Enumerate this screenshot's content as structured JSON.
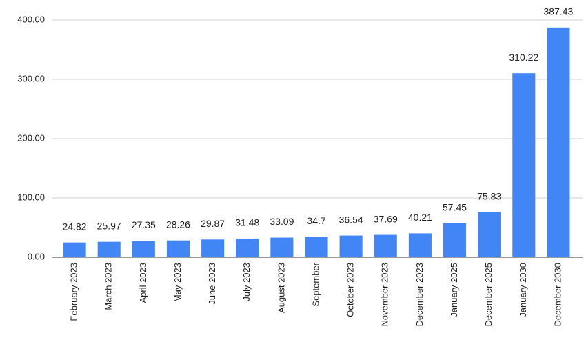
{
  "chart_data": {
    "type": "bar",
    "categories": [
      "February 2023",
      "March 2023",
      "April 2023",
      "May 2023",
      "June 2023",
      "July 2023",
      "August 2023",
      "September",
      "October 2023",
      "November 2023",
      "December 2023",
      "January 2025",
      "December 2025",
      "January 2030",
      "December 2030"
    ],
    "values": [
      24.82,
      25.97,
      27.35,
      28.26,
      29.87,
      31.48,
      33.09,
      34.7,
      36.54,
      37.69,
      40.21,
      57.45,
      75.83,
      310.22,
      387.43
    ],
    "color": "#4285f4",
    "ylim": [
      0,
      400
    ],
    "yticks": [
      {
        "value": 0,
        "label": "0.00"
      },
      {
        "value": 100,
        "label": "100.00"
      },
      {
        "value": 200,
        "label": "200.00"
      },
      {
        "value": 300,
        "label": "300.00"
      },
      {
        "value": 400,
        "label": "400.00"
      }
    ],
    "grid": true
  }
}
